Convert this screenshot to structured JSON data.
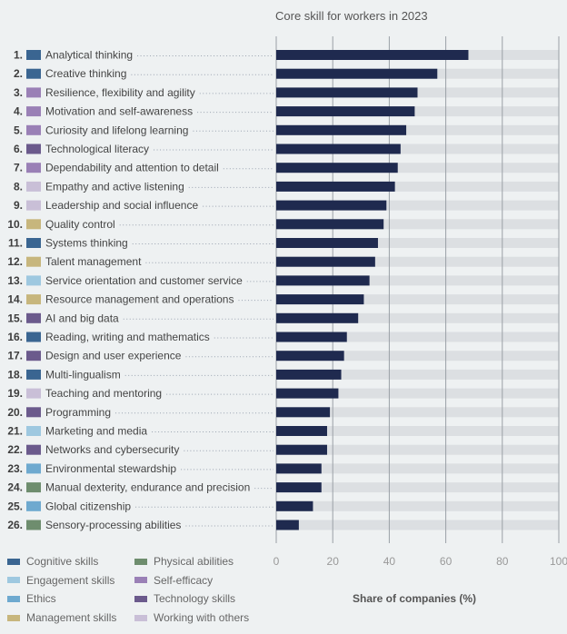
{
  "chart_data": {
    "type": "bar",
    "orientation": "horizontal",
    "title": "Core skill for workers in 2023",
    "xlabel": "Share of companies (%)",
    "ylabel": "",
    "xlim": [
      0,
      100
    ],
    "xticks": [
      "0",
      "20",
      "40",
      "60",
      "80",
      "100"
    ],
    "grid": true,
    "colors": {
      "bar": "#1f2a4f",
      "track": "#dcdfe2",
      "gridline": "#9aa0a6",
      "dots": "#9aa3b0"
    },
    "categories": [
      {
        "rank": "1.",
        "label": "Analytical thinking",
        "group": "Cognitive skills"
      },
      {
        "rank": "2.",
        "label": "Creative thinking",
        "group": "Cognitive skills"
      },
      {
        "rank": "3.",
        "label": "Resilience, flexibility and agility",
        "group": "Self-efficacy"
      },
      {
        "rank": "4.",
        "label": "Motivation and self-awareness",
        "group": "Self-efficacy"
      },
      {
        "rank": "5.",
        "label": "Curiosity and lifelong learning",
        "group": "Self-efficacy"
      },
      {
        "rank": "6.",
        "label": "Technological literacy",
        "group": "Technology skills"
      },
      {
        "rank": "7.",
        "label": "Dependability and attention to detail",
        "group": "Self-efficacy"
      },
      {
        "rank": "8.",
        "label": "Empathy and active listening",
        "group": "Working with others"
      },
      {
        "rank": "9.",
        "label": "Leadership and social influence",
        "group": "Working with others"
      },
      {
        "rank": "10.",
        "label": "Quality control",
        "group": "Management skills"
      },
      {
        "rank": "11.",
        "label": "Systems thinking",
        "group": "Cognitive skills"
      },
      {
        "rank": "12.",
        "label": "Talent management",
        "group": "Management skills"
      },
      {
        "rank": "13.",
        "label": "Service orientation and customer service",
        "group": "Engagement skills"
      },
      {
        "rank": "14.",
        "label": "Resource management and operations",
        "group": "Management skills"
      },
      {
        "rank": "15.",
        "label": "AI and big data",
        "group": "Technology skills"
      },
      {
        "rank": "16.",
        "label": "Reading, writing and mathematics",
        "group": "Cognitive skills"
      },
      {
        "rank": "17.",
        "label": "Design and user experience",
        "group": "Technology skills"
      },
      {
        "rank": "18.",
        "label": "Multi-lingualism",
        "group": "Cognitive skills"
      },
      {
        "rank": "19.",
        "label": "Teaching and mentoring",
        "group": "Working with others"
      },
      {
        "rank": "20.",
        "label": "Programming",
        "group": "Technology skills"
      },
      {
        "rank": "21.",
        "label": "Marketing and media",
        "group": "Engagement skills"
      },
      {
        "rank": "22.",
        "label": "Networks and cybersecurity",
        "group": "Technology skills"
      },
      {
        "rank": "23.",
        "label": "Environmental stewardship",
        "group": "Ethics"
      },
      {
        "rank": "24.",
        "label": "Manual dexterity, endurance and precision",
        "group": "Physical abilities"
      },
      {
        "rank": "25.",
        "label": "Global citizenship",
        "group": "Ethics"
      },
      {
        "rank": "26.",
        "label": "Sensory-processing abilities",
        "group": "Physical abilities"
      }
    ],
    "values": [
      68,
      57,
      50,
      49,
      46,
      44,
      43,
      42,
      39,
      38,
      36,
      35,
      33,
      31,
      29,
      25,
      24,
      23,
      22,
      19,
      18,
      18,
      16,
      16,
      13,
      8
    ],
    "legend": [
      {
        "name": "Cognitive skills",
        "color": "#3a6591"
      },
      {
        "name": "Physical abilities",
        "color": "#6e8d6e"
      },
      {
        "name": "Engagement skills",
        "color": "#9ec8e0"
      },
      {
        "name": "Self-efficacy",
        "color": "#9a80b6"
      },
      {
        "name": "Ethics",
        "color": "#6ea9cf"
      },
      {
        "name": "Technology skills",
        "color": "#6b5a8c"
      },
      {
        "name": "Management skills",
        "color": "#c7b67d"
      },
      {
        "name": "Working with others",
        "color": "#c9bfd7"
      }
    ]
  }
}
